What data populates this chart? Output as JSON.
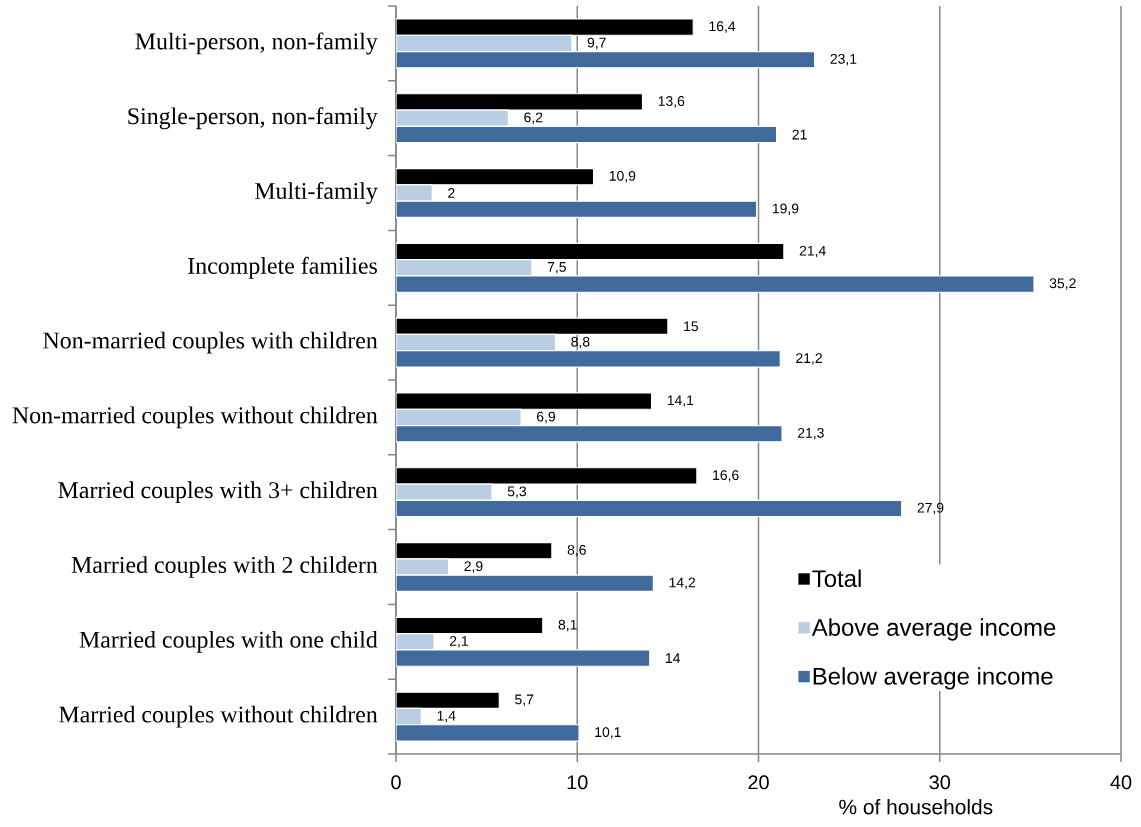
{
  "chart_data": {
    "type": "bar",
    "orientation": "horizontal",
    "categories": [
      "Multi-person, non-family",
      "Single-person, non-family",
      "Multi-family",
      "Incomplete families",
      "Non-married couples with children",
      "Non-married couples without children",
      "Married couples with 3+ children",
      "Married couples with 2 childern",
      "Married couples with one child",
      "Married couples without children"
    ],
    "series": [
      {
        "name": "Total",
        "color": "#000000",
        "values": [
          16.4,
          13.6,
          10.9,
          21.4,
          15,
          14.1,
          16.6,
          8.6,
          8.1,
          5.7
        ],
        "value_labels": [
          "16,4",
          "13,6",
          "10,9",
          "21,4",
          "15",
          "14,1",
          "16,6",
          "8,6",
          "8,1",
          "5,7"
        ]
      },
      {
        "name": "Above average income",
        "color": "#b9cde5",
        "values": [
          9.7,
          6.2,
          2,
          7.5,
          8.8,
          6.9,
          5.3,
          2.9,
          2.1,
          1.4
        ],
        "value_labels": [
          "9,7",
          "6,2",
          "2",
          "7,5",
          "8,8",
          "6,9",
          "5,3",
          "2,9",
          "2,1",
          "1,4"
        ]
      },
      {
        "name": "Below average income",
        "color": "#416a9c",
        "values": [
          23.1,
          21,
          19.9,
          35.2,
          21.2,
          21.3,
          27.9,
          14.2,
          14,
          10.1
        ],
        "value_labels": [
          "23,1",
          "21",
          "19,9",
          "35,2",
          "21,2",
          "21,3",
          "27,9",
          "14,2",
          "14",
          "10,1"
        ]
      }
    ],
    "xlabel": "% of households",
    "xlim": [
      0,
      40
    ],
    "xticks": [
      0,
      10,
      20,
      30,
      40
    ],
    "grid": "x",
    "legend": "bottom right"
  }
}
